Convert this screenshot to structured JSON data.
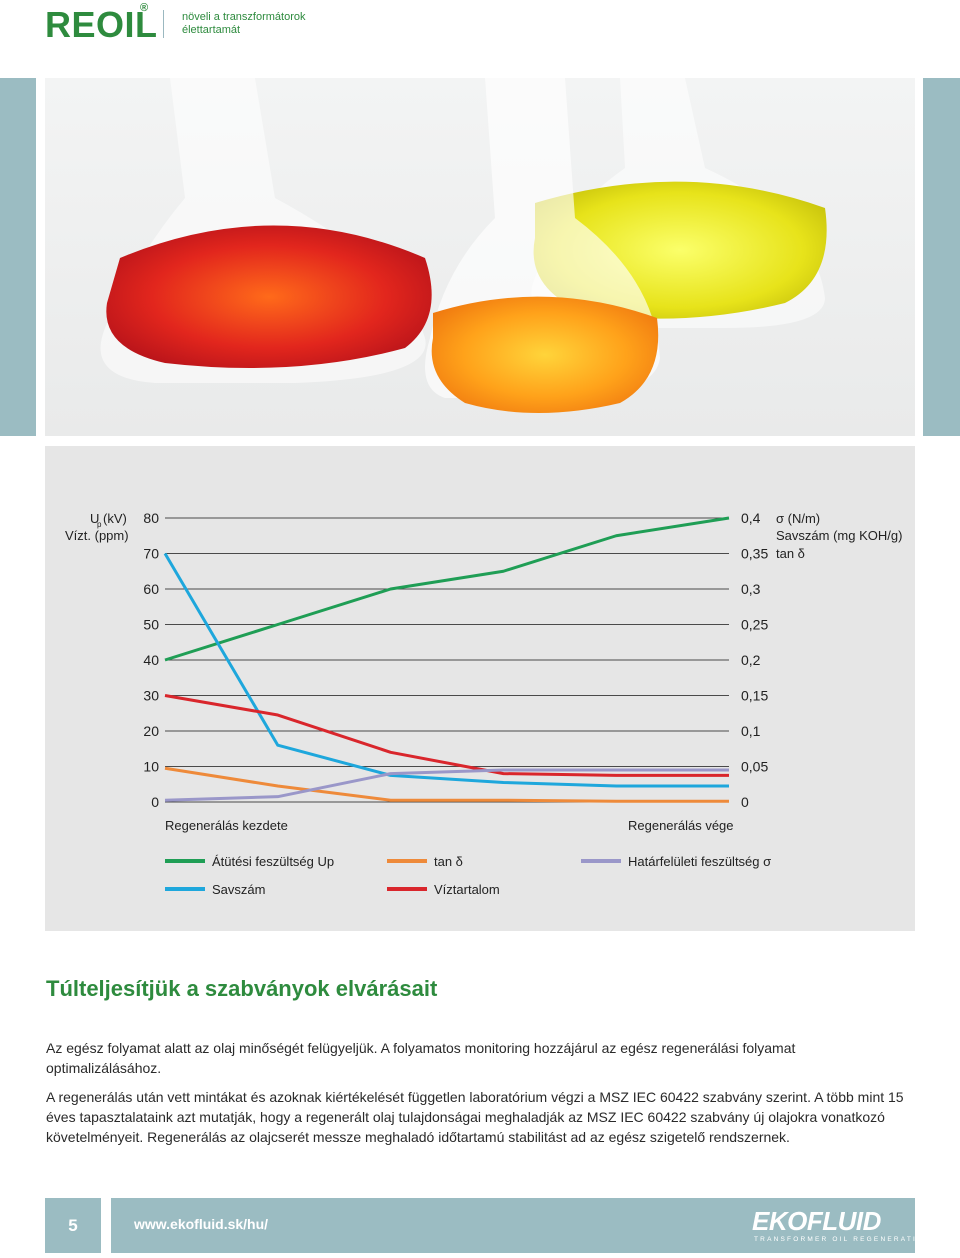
{
  "header": {
    "brand": "REOIL",
    "brand_mark": "®",
    "tagline": "növeli a transzformátorok élettartamát"
  },
  "colors": {
    "brand_green": "#2e8b3e",
    "band_blue": "#9bbcc2",
    "chart_bg": "#e6e6e6"
  },
  "chart_data": {
    "type": "line",
    "left_axis_label_lines": [
      "U (kV)",
      "Vízt. (ppm)"
    ],
    "left_axis_label_sub": "p",
    "right_axis_label_lines": [
      "σ (N/m)",
      "Savszám (mg KOH/g)",
      "tan δ"
    ],
    "left_ticks": [
      "0",
      "10",
      "20",
      "30",
      "40",
      "50",
      "60",
      "70",
      "80"
    ],
    "right_ticks": [
      "0",
      "0,05",
      "0,1",
      "0,15",
      "0,2",
      "0,25",
      "0,3",
      "0,35",
      "0,4"
    ],
    "ylim": [
      0,
      80
    ],
    "x_labels": [
      "Regenerálás kezdete",
      "Regenerálás vége"
    ],
    "x": [
      0,
      1,
      2,
      3,
      4,
      5
    ],
    "series": [
      {
        "name": "Átütési feszültség Up",
        "color": "#1f9e55",
        "values": [
          40,
          50,
          60,
          65,
          75,
          80
        ]
      },
      {
        "name": "Savszám",
        "color": "#1ea7dc",
        "values": [
          70,
          16,
          7.5,
          5.5,
          4.5,
          4.5
        ]
      },
      {
        "name": "tan δ",
        "color": "#ee8a3a",
        "values": [
          9.5,
          4.5,
          0.5,
          0.5,
          0.2,
          0.2
        ]
      },
      {
        "name": "Víztartalom",
        "color": "#d9262c",
        "values": [
          30,
          24.5,
          14,
          8,
          7.5,
          7.5
        ]
      },
      {
        "name": "Határfelületi feszültség σ",
        "color": "#9a97c9",
        "values": [
          0.5,
          1.5,
          8,
          9,
          9,
          9
        ]
      }
    ],
    "legend": [
      {
        "label": "Átütési feszültség Up",
        "color": "#1f9e55"
      },
      {
        "label": "tan δ",
        "color": "#ee8a3a"
      },
      {
        "label": "Határfelületi feszültség σ",
        "color": "#9a97c9"
      },
      {
        "label": "Savszám",
        "color": "#1ea7dc"
      },
      {
        "label": "Víztartalom",
        "color": "#d9262c"
      }
    ],
    "grid": true,
    "legend_placement": "bottom"
  },
  "section": {
    "heading": "Túlteljesítjük a szabványok elvárásait",
    "paragraph1": "Az egész folyamat alatt az olaj minőségét felügyeljük. A folyamatos monitoring hozzájárul az egész regenerálási folyamat optimalizálásához.",
    "paragraph2": "A regenerálás után vett mintákat és azoknak kiértékelését független laboratórium végzi a MSZ IEC 60422 szabvány szerint. A több mint 15 éves tapasztalataink azt mutatják, hogy a regenerált olaj tulajdonságai meghaladják az MSZ IEC 60422 szabvány új olajokra vonatkozó követelményeit. Regenerálás az olajcserét messze meghaladó időtartamú stabilitást ad az egész szigetelő rendszernek."
  },
  "footer": {
    "page_number": "5",
    "url": "www.ekofluid.sk/hu/",
    "logo_text": "EKOFLUID",
    "logo_subtext": "TRANSFORMER OIL REGENERATION"
  }
}
